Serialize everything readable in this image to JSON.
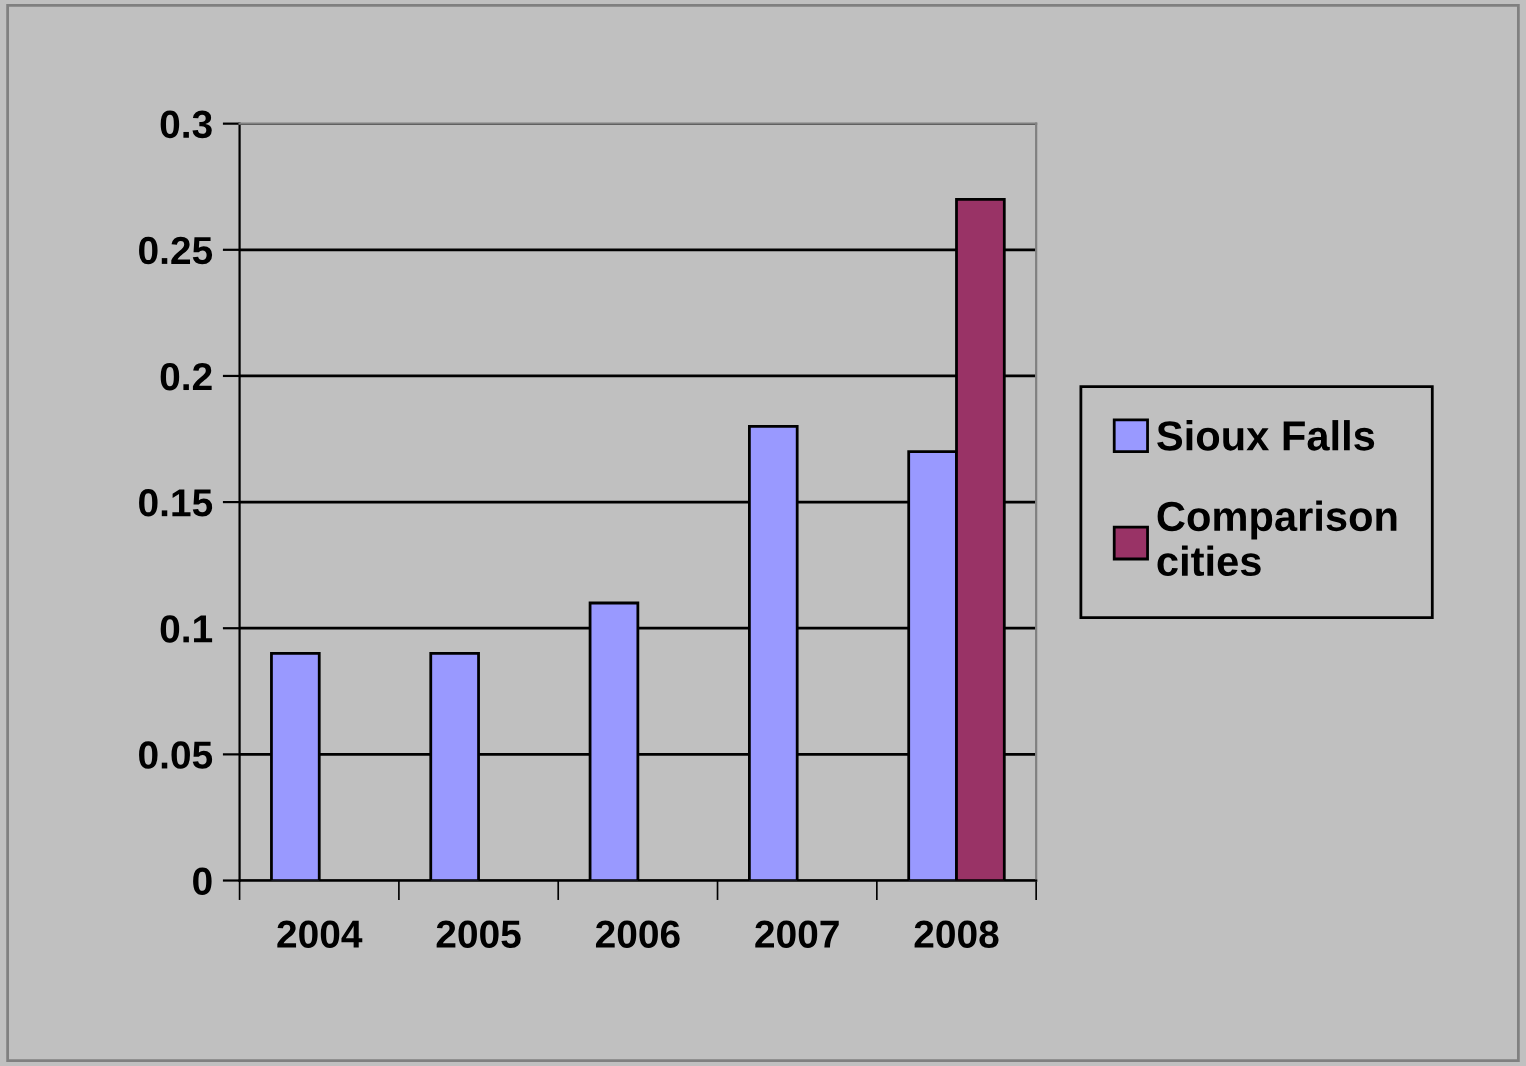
{
  "chart_data": {
    "type": "bar",
    "categories": [
      "2004",
      "2005",
      "2006",
      "2007",
      "2008"
    ],
    "series": [
      {
        "name": "Sioux Falls",
        "color": "#9999ff",
        "values": [
          0.09,
          0.09,
          0.11,
          0.18,
          0.17
        ]
      },
      {
        "name": "Comparison cities",
        "color": "#993366",
        "values": [
          null,
          null,
          null,
          null,
          0.27
        ]
      }
    ],
    "ylim": [
      0,
      0.3
    ],
    "yticks": [
      0,
      0.05,
      0.1,
      0.15,
      0.2,
      0.25,
      0.3
    ],
    "grid": "y",
    "legend": "right"
  }
}
